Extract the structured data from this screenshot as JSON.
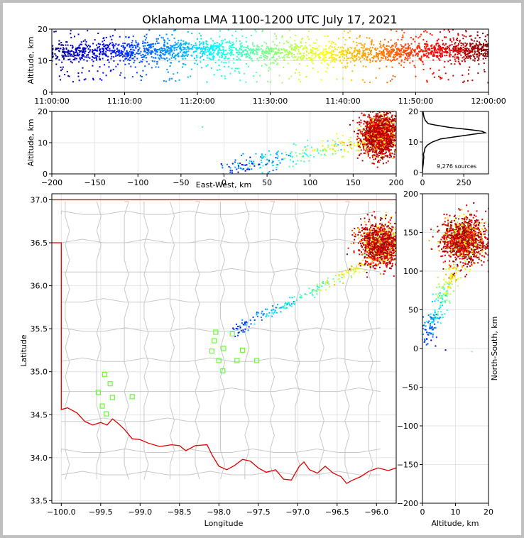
{
  "figure": {
    "title": "Oklahoma LMA 1100-1200 UTC July 17, 2021",
    "source_count_label": "9,276 sources"
  },
  "colors": {
    "colormap": "jet",
    "border_red": "#e00000",
    "station_green": "#66ff33",
    "county_lines": "#c8c8c8"
  },
  "chart_data": [
    {
      "id": "time-altitude",
      "type": "scatter",
      "xlabel": "",
      "ylabel": "Altitude, km",
      "x_ticks": [
        "11:00:00",
        "11:10:00",
        "11:20:00",
        "11:30:00",
        "11:40:00",
        "11:50:00",
        "12:00:00"
      ],
      "y_ticks": [
        "0",
        "10",
        "20"
      ],
      "xlim": [
        "11:00:00",
        "12:00:00"
      ],
      "ylim": [
        0,
        20
      ],
      "color_by": "time",
      "bands": [
        {
          "t_min": 0,
          "center_km": 12.5,
          "density": 1.0
        },
        {
          "t_min": 10,
          "center_km": 12.8,
          "density": 1.3
        },
        {
          "t_min": 20,
          "center_km": 13.5,
          "density": 1.2
        },
        {
          "t_min": 30,
          "center_km": 12.8,
          "density": 1.1
        },
        {
          "t_min": 40,
          "center_km": 12.0,
          "density": 1.0
        },
        {
          "t_min": 50,
          "center_km": 13.0,
          "density": 1.4
        },
        {
          "t_min": 60,
          "center_km": 13.5,
          "density": 1.6
        }
      ]
    },
    {
      "id": "ew-altitude",
      "type": "scatter",
      "xlabel": "East-West, km",
      "ylabel": "Altitude, km",
      "x_ticks": [
        "−200",
        "−150",
        "−100",
        "−50",
        "0",
        "50",
        "100",
        "150",
        "200"
      ],
      "y_ticks": [
        "0",
        "10",
        "20"
      ],
      "xlim": [
        -200,
        200
      ],
      "ylim": [
        0,
        20
      ],
      "color_by": "time"
    },
    {
      "id": "alt-histogram",
      "type": "line",
      "xlabel": "",
      "ylabel": "",
      "x_ticks": [
        "0",
        "250"
      ],
      "y_ticks": [
        "0",
        "10",
        "20"
      ],
      "xlim": [
        0,
        400
      ],
      "ylim": [
        0,
        20
      ],
      "profile": [
        [
          0,
          0
        ],
        [
          1,
          1
        ],
        [
          3,
          2
        ],
        [
          5,
          3
        ],
        [
          6,
          4
        ],
        [
          8,
          5
        ],
        [
          6,
          6
        ],
        [
          12,
          7
        ],
        [
          15,
          8
        ],
        [
          30,
          9
        ],
        [
          60,
          10
        ],
        [
          110,
          11
        ],
        [
          240,
          12
        ],
        [
          330,
          12.7
        ],
        [
          380,
          13
        ],
        [
          360,
          13.5
        ],
        [
          290,
          14
        ],
        [
          160,
          14.8
        ],
        [
          80,
          15.5
        ],
        [
          35,
          16
        ],
        [
          18,
          17
        ],
        [
          10,
          18
        ],
        [
          6,
          19
        ],
        [
          3,
          20
        ]
      ]
    },
    {
      "id": "plan-map",
      "type": "scatter",
      "xlabel": "Longitude",
      "ylabel": "Latitude",
      "x_ticks": [
        "−100.0",
        "−99.5",
        "−99.0",
        "−98.5",
        "−98.0",
        "−97.5",
        "−97.0",
        "−96.5",
        "−96.0"
      ],
      "y_ticks": [
        "33.5",
        "34.0",
        "34.5",
        "35.0",
        "35.5",
        "36.0",
        "36.5",
        "37.0"
      ],
      "xlim": [
        -100.12,
        -95.75
      ],
      "ylim": [
        33.47,
        37.07
      ],
      "color_by": "time",
      "stations": [
        [
          -99.45,
          34.97
        ],
        [
          -99.38,
          34.86
        ],
        [
          -99.53,
          34.76
        ],
        [
          -99.35,
          34.7
        ],
        [
          -99.48,
          34.6
        ],
        [
          -99.43,
          34.51
        ],
        [
          -99.1,
          34.71
        ],
        [
          -98.04,
          35.46
        ],
        [
          -97.83,
          35.44
        ],
        [
          -98.06,
          35.36
        ],
        [
          -97.94,
          35.27
        ],
        [
          -98.09,
          35.24
        ],
        [
          -97.7,
          35.25
        ],
        [
          -98.0,
          35.13
        ],
        [
          -97.77,
          35.13
        ],
        [
          -97.52,
          35.13
        ],
        [
          -97.95,
          35.01
        ]
      ]
    },
    {
      "id": "ns-altitude",
      "type": "scatter",
      "xlabel": "Altitude, km",
      "ylabel": "North-South, km",
      "x_ticks": [
        "0",
        "10",
        "20"
      ],
      "y_ticks": [
        "−200",
        "−150",
        "−100",
        "−50",
        "0",
        "50",
        "100",
        "150",
        "200"
      ],
      "xlim": [
        0,
        20
      ],
      "ylim": [
        -200,
        200
      ],
      "color_by": "time"
    }
  ]
}
